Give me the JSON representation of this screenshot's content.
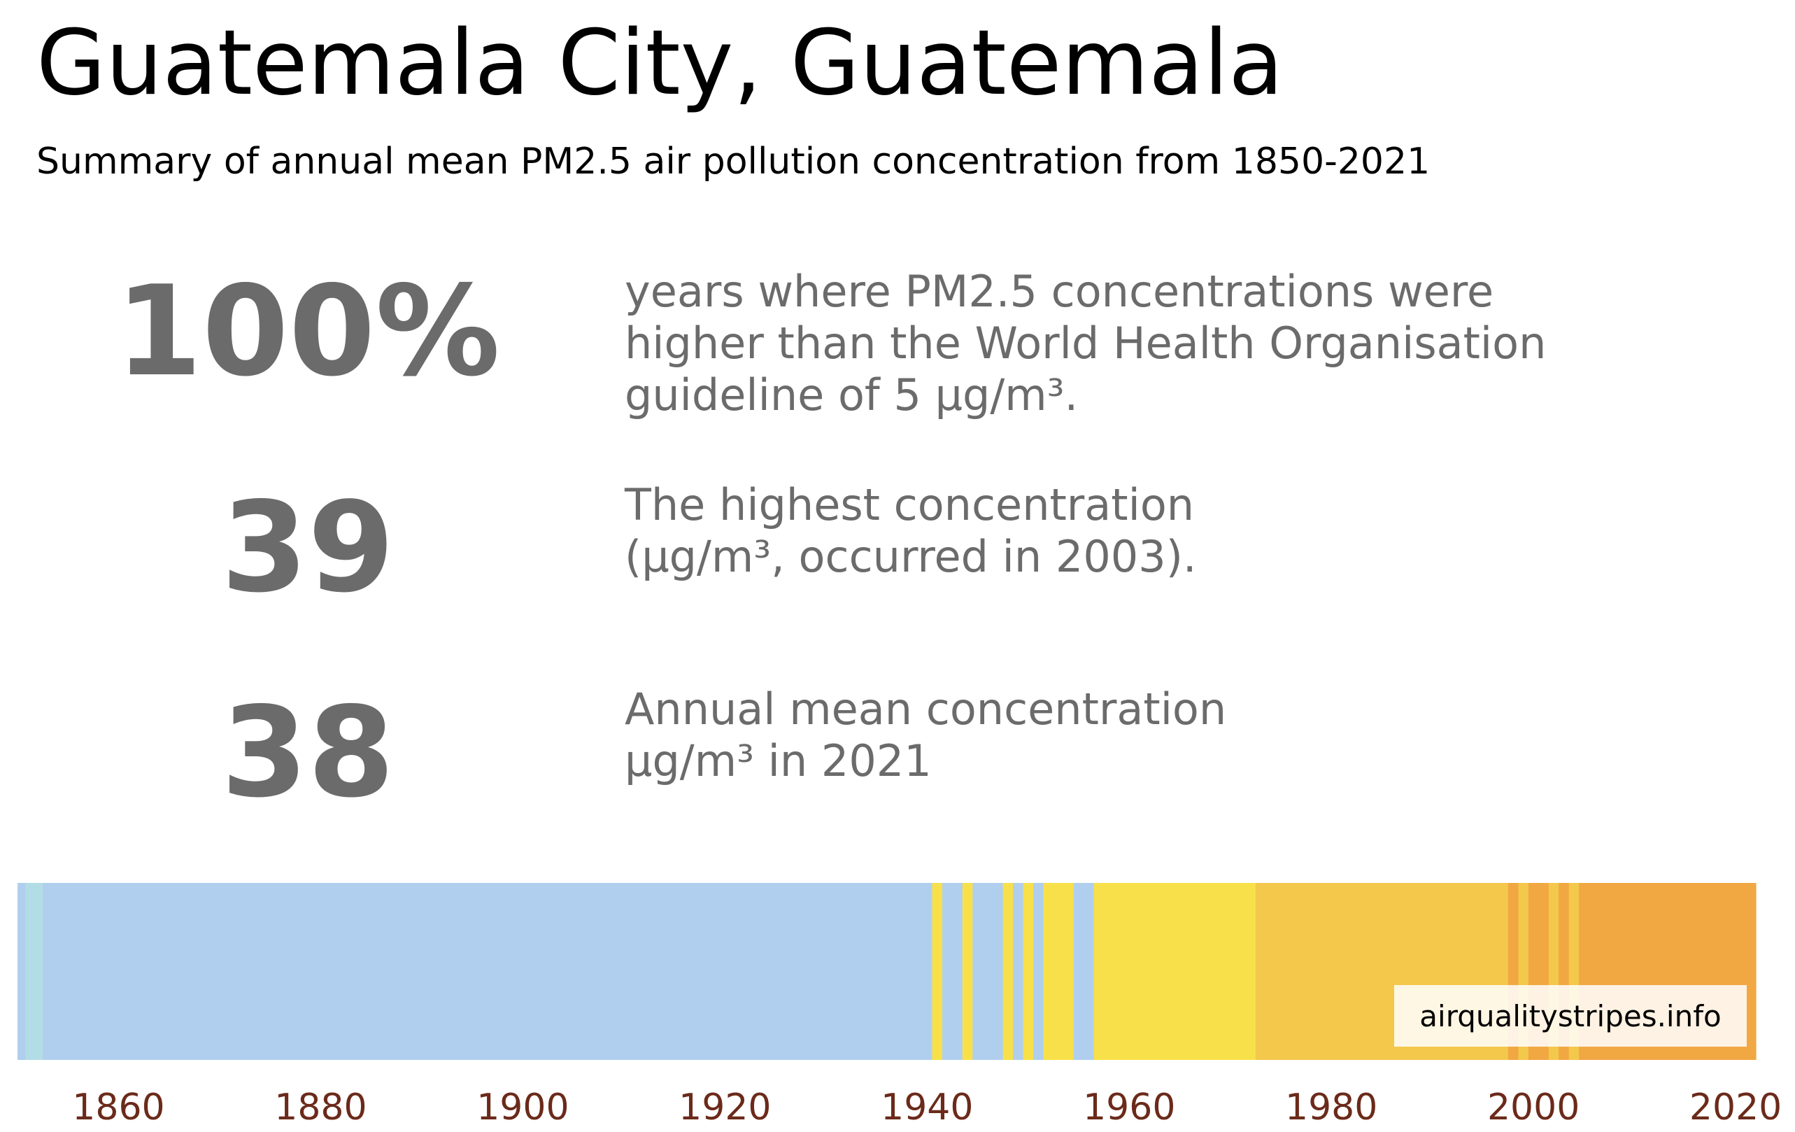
{
  "title": "Guatemala City, Guatemala",
  "subtitle": "Summary of annual mean PM2.5 air pollution concentration from 1850-2021",
  "stats": [
    {
      "value": "100%",
      "desc": "years where PM2.5 concentrations were\nhigher than the World Health Organisation\nguideline of 5 µg/m³."
    },
    {
      "value": "39",
      "desc": "The highest concentration\n(µg/m³, occurred in 2003)."
    },
    {
      "value": "38",
      "desc": "Annual mean concentration\nµg/m³ in 2021"
    }
  ],
  "source": "airqualitystripes.info",
  "chart_data": {
    "type": "heatmap",
    "x_range": [
      1850,
      2022
    ],
    "x_ticks": [
      1860,
      1880,
      1900,
      1920,
      1940,
      1960,
      1980,
      2000,
      2020
    ],
    "colors": {
      "pale_cyan": "#b3dde6",
      "light_blue": "#b0cfee",
      "yellow": "#f8e04a",
      "light_orange": "#f3c84b",
      "orange": "#f1a843",
      "tick_label": "#6b2a1a"
    },
    "segments": [
      {
        "start": 1850,
        "end": 1850.8,
        "color": "light_blue"
      },
      {
        "start": 1850.8,
        "end": 1852.5,
        "color": "pale_cyan"
      },
      {
        "start": 1852.5,
        "end": 1940.5,
        "color": "light_blue"
      },
      {
        "start": 1940.5,
        "end": 1941.5,
        "color": "yellow"
      },
      {
        "start": 1941.5,
        "end": 1943.5,
        "color": "light_blue"
      },
      {
        "start": 1943.5,
        "end": 1944.5,
        "color": "yellow"
      },
      {
        "start": 1944.5,
        "end": 1947.5,
        "color": "light_blue"
      },
      {
        "start": 1947.5,
        "end": 1948.5,
        "color": "yellow"
      },
      {
        "start": 1948.5,
        "end": 1949.5,
        "color": "light_blue"
      },
      {
        "start": 1949.5,
        "end": 1950.5,
        "color": "yellow"
      },
      {
        "start": 1950.5,
        "end": 1951.5,
        "color": "light_blue"
      },
      {
        "start": 1951.5,
        "end": 1954.5,
        "color": "yellow"
      },
      {
        "start": 1954.5,
        "end": 1956.5,
        "color": "light_blue"
      },
      {
        "start": 1956.5,
        "end": 1972.5,
        "color": "yellow"
      },
      {
        "start": 1972.5,
        "end": 1997.5,
        "color": "light_orange"
      },
      {
        "start": 1997.5,
        "end": 1998.5,
        "color": "orange"
      },
      {
        "start": 1998.5,
        "end": 1999.5,
        "color": "light_orange"
      },
      {
        "start": 1999.5,
        "end": 2001.5,
        "color": "orange"
      },
      {
        "start": 2001.5,
        "end": 2002.5,
        "color": "light_orange"
      },
      {
        "start": 2002.5,
        "end": 2003.5,
        "color": "orange"
      },
      {
        "start": 2003.5,
        "end": 2004.5,
        "color": "light_orange"
      },
      {
        "start": 2004.5,
        "end": 2022,
        "color": "orange"
      }
    ]
  }
}
